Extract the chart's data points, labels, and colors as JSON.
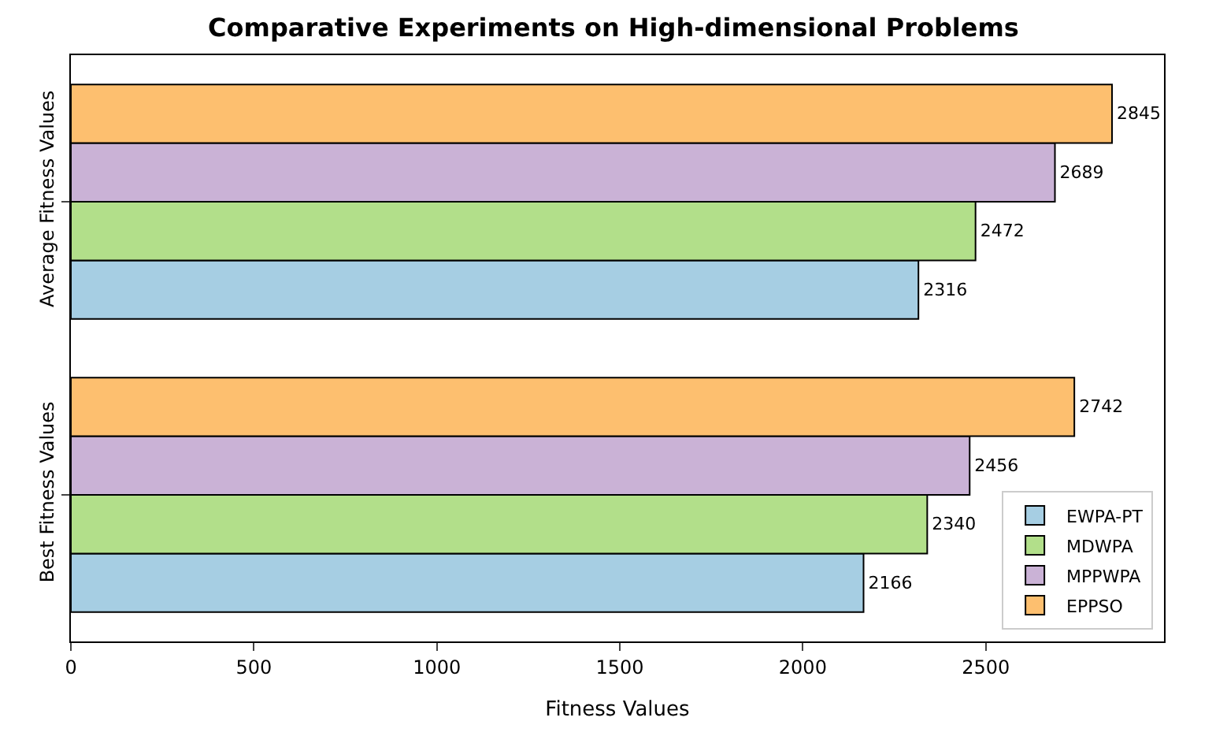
{
  "chart_data": {
    "type": "bar",
    "orientation": "horizontal",
    "title": "Comparative Experiments on High-dimensional Problems",
    "xlabel": "Fitness Values",
    "categories": [
      "Average Fitness Values",
      "Best Fitness Values"
    ],
    "series": [
      {
        "name": "EWPA-PT",
        "color": "#a6cee3",
        "values": [
          2316,
          2166
        ]
      },
      {
        "name": "MDWPA",
        "color": "#b2df8a",
        "values": [
          2472,
          2340
        ]
      },
      {
        "name": "MPPWPA",
        "color": "#cab2d6",
        "values": [
          2689,
          2456
        ]
      },
      {
        "name": "EPPSO",
        "color": "#fdbf6f",
        "values": [
          2845,
          2742
        ]
      }
    ],
    "xlim": [
      0,
      2987
    ],
    "xticks": [
      0,
      500,
      1000,
      1500,
      2000,
      2500
    ],
    "data_labels": true,
    "legend": "bottom right"
  }
}
